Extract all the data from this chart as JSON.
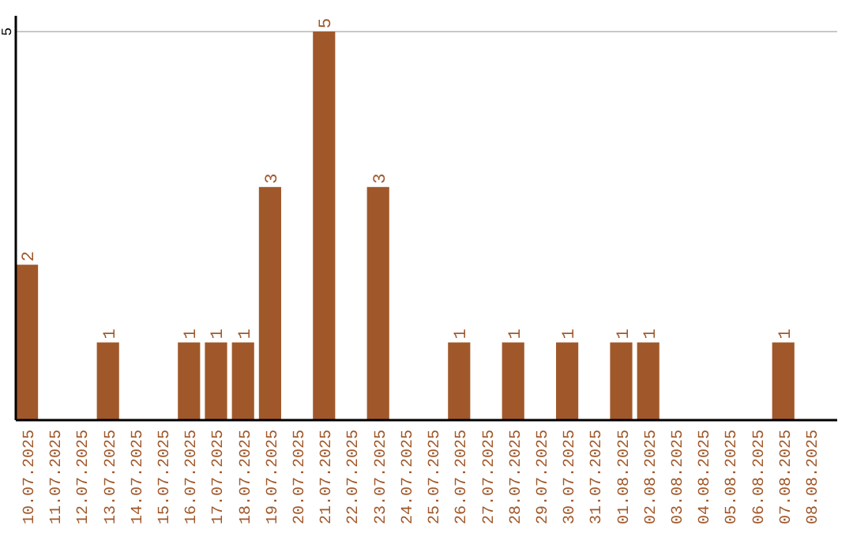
{
  "chart_data": {
    "type": "bar",
    "categories": [
      "10.07.2025",
      "11.07.2025",
      "12.07.2025",
      "13.07.2025",
      "14.07.2025",
      "15.07.2025",
      "16.07.2025",
      "17.07.2025",
      "18.07.2025",
      "19.07.2025",
      "20.07.2025",
      "21.07.2025",
      "22.07.2025",
      "23.07.2025",
      "24.07.2025",
      "25.07.2025",
      "26.07.2025",
      "27.07.2025",
      "28.07.2025",
      "29.07.2025",
      "30.07.2025",
      "31.07.2025",
      "01.08.2025",
      "02.08.2025",
      "03.08.2025",
      "04.08.2025",
      "05.08.2025",
      "06.08.2025",
      "07.08.2025",
      "08.08.2025"
    ],
    "values": [
      2,
      0,
      0,
      1,
      0,
      0,
      1,
      1,
      1,
      3,
      0,
      5,
      0,
      3,
      0,
      0,
      1,
      0,
      1,
      0,
      1,
      0,
      1,
      1,
      0,
      0,
      0,
      0,
      1,
      0
    ],
    "value_labels": [
      "2",
      null,
      null,
      "1",
      null,
      null,
      "1",
      "1",
      "1",
      "3",
      null,
      "5",
      null,
      "3",
      null,
      null,
      "1",
      null,
      "1",
      null,
      "1",
      null,
      "1",
      "1",
      null,
      null,
      null,
      null,
      "1",
      null
    ],
    "color": "#a0582a",
    "ylim": [
      0,
      5
    ],
    "yticks": [
      5
    ],
    "ref_lines": [
      {
        "axis": "y",
        "value": 5,
        "color": "#c8c8c8"
      }
    ]
  }
}
